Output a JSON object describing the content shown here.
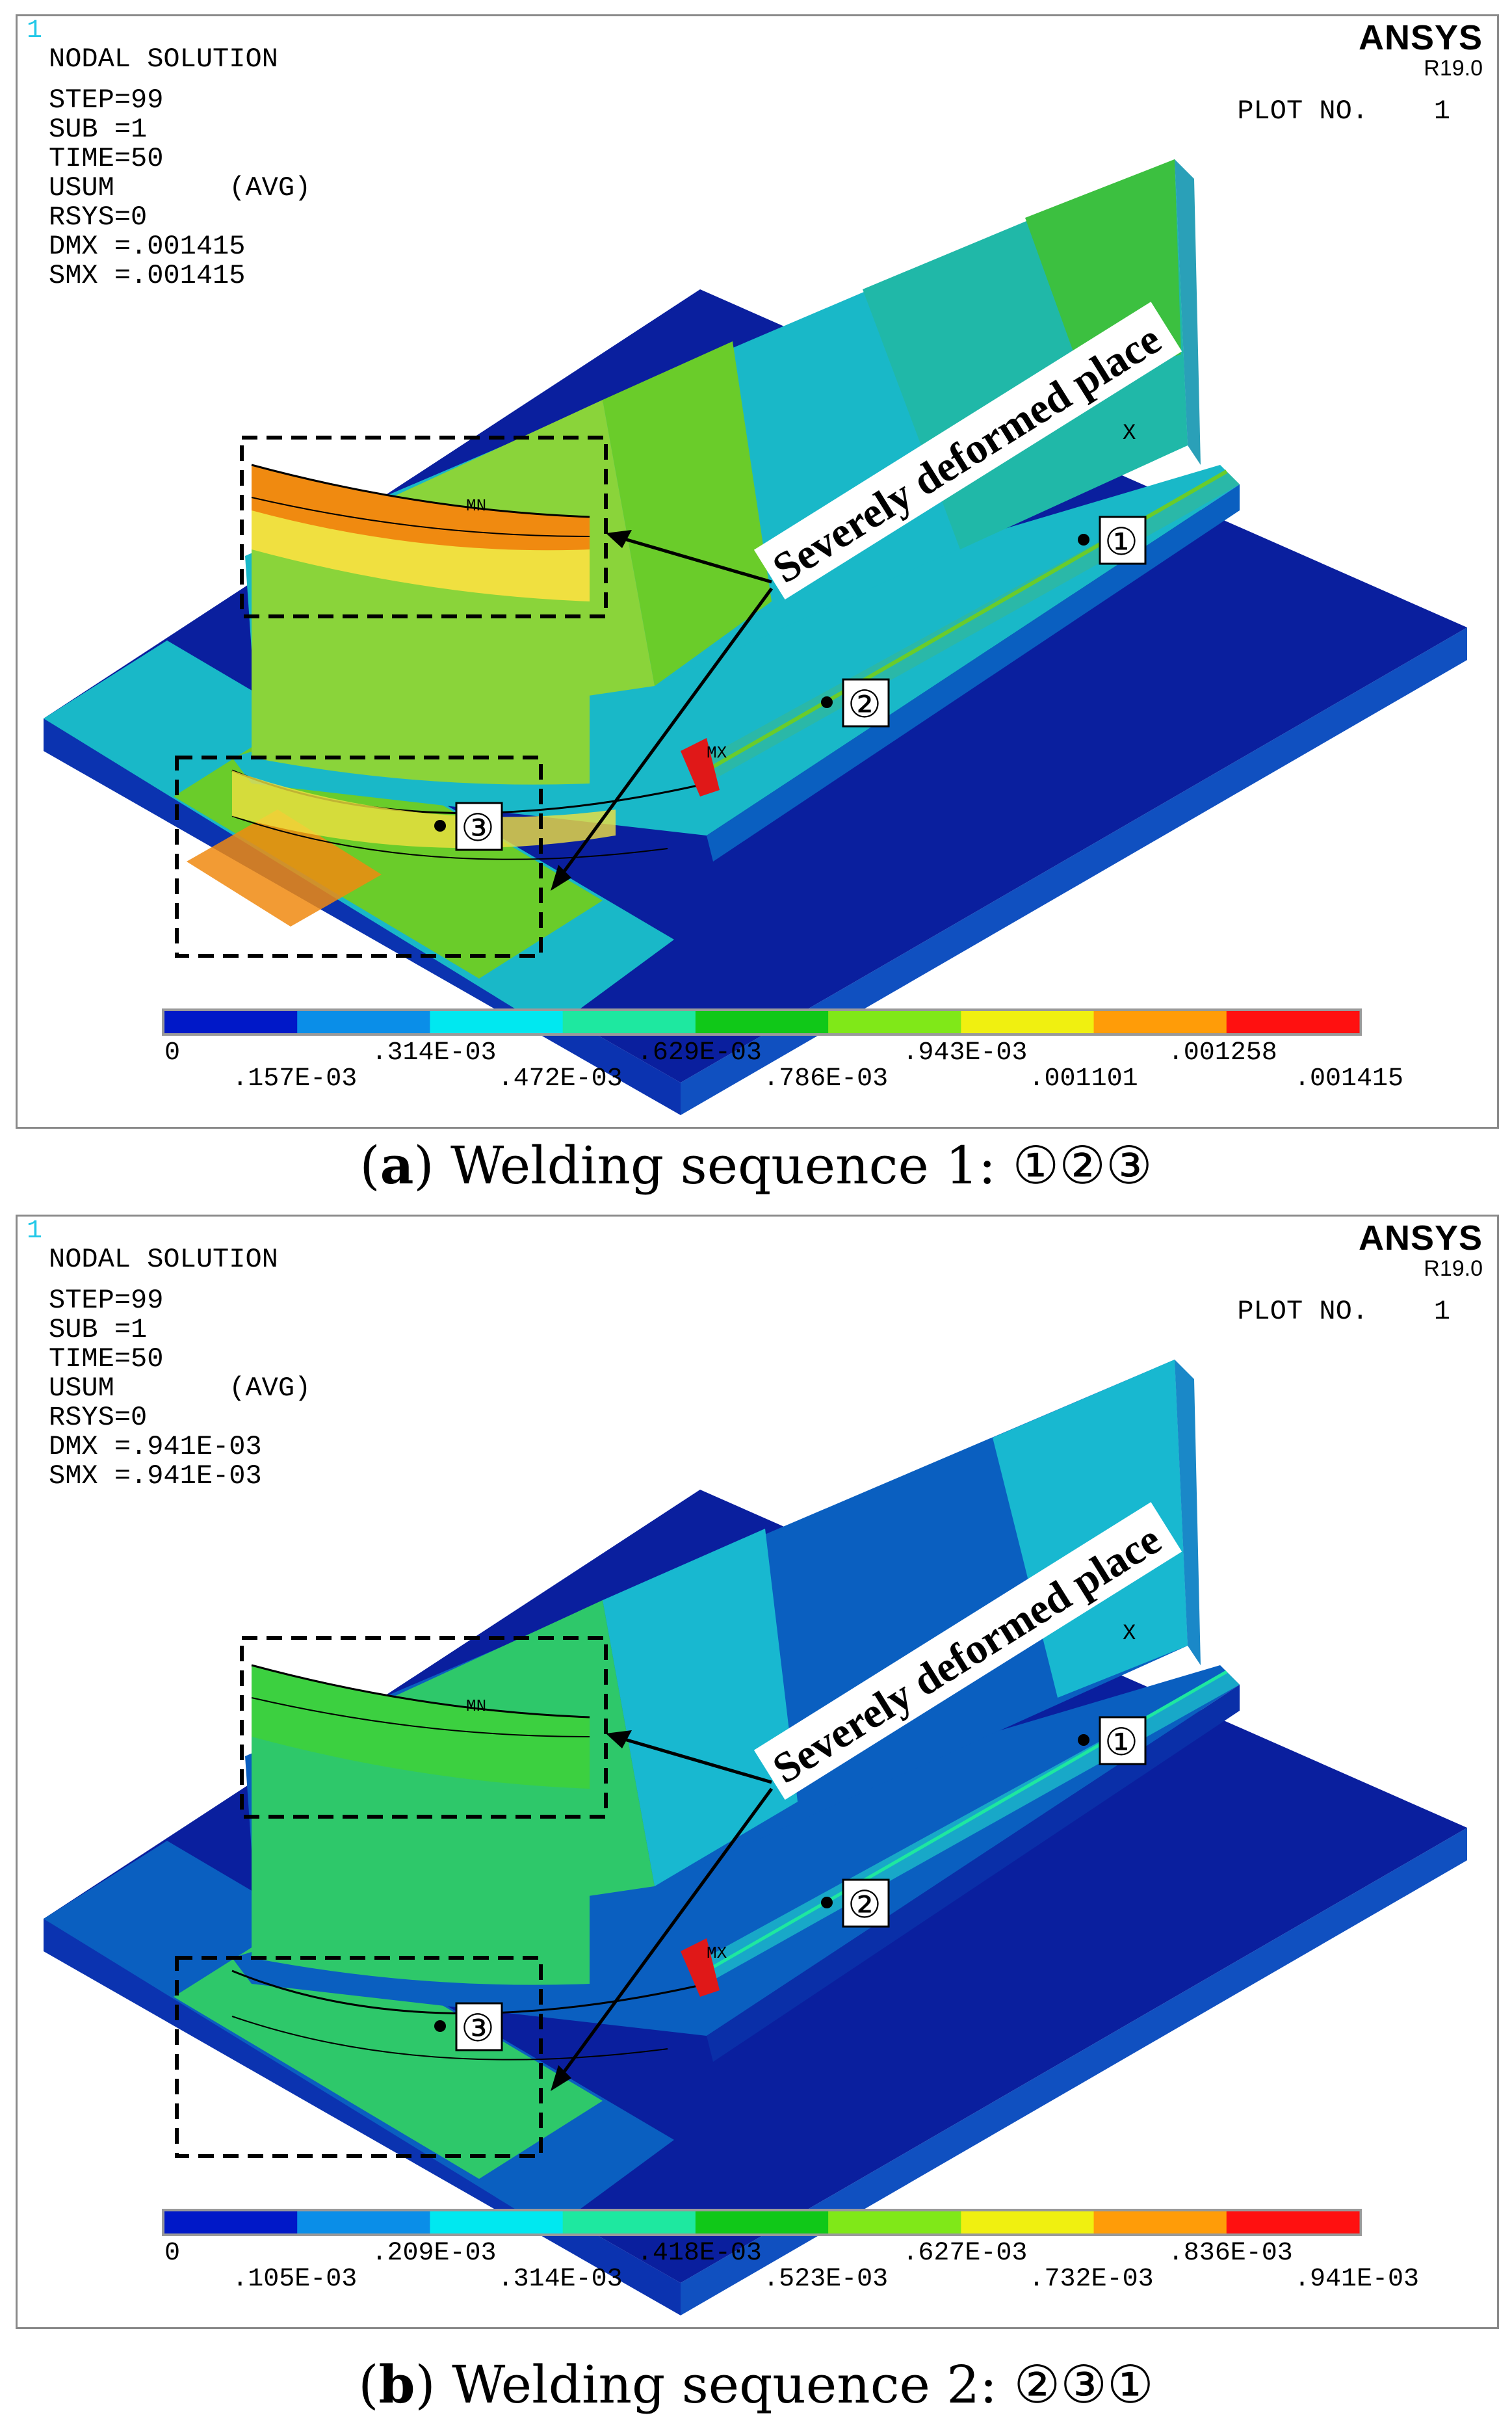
{
  "panels": [
    {
      "fig_index": "1",
      "info": [
        "NODAL SOLUTION",
        "STEP=99",
        "SUB =1",
        "TIME=50",
        "USUM       (AVG)",
        "RSYS=0",
        "DMX =.001415",
        "SMX =.001415"
      ],
      "brand": "ANSYS",
      "version": "R19.0",
      "plot_no": "PLOT NO.    1",
      "annotation": "Severely deformed place",
      "points": [
        "①",
        "②",
        "③"
      ],
      "mx_label": "MX",
      "mn_label": "MN",
      "x_label": "X",
      "legend_ticks_top": [
        "0",
        ".314E-03",
        ".629E-03",
        ".943E-03",
        ".001258"
      ],
      "legend_ticks_bottom": [
        ".157E-03",
        ".472E-03",
        ".786E-03",
        ".001101",
        ".001415"
      ],
      "colors": {
        "plate": "#0a1f9e",
        "flange_mid": "#19b8c8",
        "web_top": "#6acc2a",
        "wall": "#8ad43a",
        "hot": "#f08a10",
        "weld": "#2ab8a8"
      },
      "caption_label": "a",
      "caption_text": ") Welding sequence 1:  ①②③"
    },
    {
      "fig_index": "1",
      "info": [
        "NODAL SOLUTION",
        "STEP=99",
        "SUB =1",
        "TIME=50",
        "USUM       (AVG)",
        "RSYS=0",
        "DMX =.941E-03",
        "SMX =.941E-03"
      ],
      "brand": "ANSYS",
      "version": "R19.0",
      "plot_no": "PLOT NO.    1",
      "annotation": "Severely deformed place",
      "points": [
        "①",
        "②",
        "③"
      ],
      "mx_label": "MX",
      "mn_label": "MN",
      "x_label": "X",
      "legend_ticks_top": [
        "0",
        ".209E-03",
        ".418E-03",
        ".627E-03",
        ".836E-03"
      ],
      "legend_ticks_bottom": [
        ".105E-03",
        ".314E-03",
        ".523E-03",
        ".732E-03",
        ".941E-03"
      ],
      "colors": {
        "plate": "#0a1f9e",
        "flange_mid": "#0a5fc0",
        "web_top": "#18b8d0",
        "wall": "#2ec86a",
        "hot": "#3cd040",
        "weld": "#18a8c8"
      },
      "caption_label": "b",
      "caption_text": ") Welding sequence 2: ②③①"
    }
  ],
  "legend_colors": [
    "#0018c8",
    "#0a8ee8",
    "#00e8f0",
    "#1ee8a0",
    "#10c818",
    "#80e818",
    "#f0f010",
    "#ff9c08",
    "#ff1010"
  ]
}
